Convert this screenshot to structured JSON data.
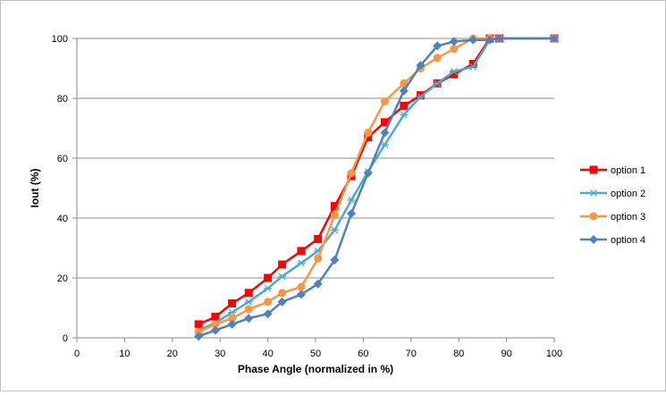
{
  "chart_data": {
    "type": "line",
    "title": "",
    "xlabel": "Phase Angle (normalized in %)",
    "ylabel": "Iout (%)",
    "xlim": [
      0,
      100
    ],
    "ylim": [
      0,
      100
    ],
    "xticks": [
      "0",
      "10",
      "20",
      "30",
      "40",
      "50",
      "60",
      "70",
      "80",
      "90",
      "100"
    ],
    "yticks": [
      "0",
      "20",
      "40",
      "60",
      "80",
      "100"
    ],
    "grid": "horizontal",
    "legend": "right",
    "series": [
      {
        "name": "option 1",
        "color": "#ff0000",
        "marker": "square",
        "x": [
          25.5,
          29,
          32.5,
          36,
          40,
          43,
          47,
          50.5,
          54,
          57.5,
          61,
          64.5,
          68.5,
          72,
          75.5,
          79,
          83,
          86.5,
          88.5,
          100
        ],
        "y": [
          4.5,
          7,
          11.5,
          15,
          20,
          24.5,
          29,
          33,
          44,
          54,
          67,
          72,
          77.5,
          81,
          85,
          88,
          91.5,
          100,
          100,
          100
        ]
      },
      {
        "name": "option 2",
        "color": "#4bacc6",
        "marker": "star",
        "x": [
          25.5,
          29,
          32.5,
          36,
          40,
          43,
          47,
          50.5,
          54,
          57.5,
          61,
          64.5,
          68.5,
          72,
          75.5,
          79,
          83,
          86.5,
          88.5,
          100
        ],
        "y": [
          2.5,
          5,
          8.5,
          12,
          16.5,
          20.5,
          25,
          29,
          36,
          46,
          55.5,
          64.5,
          74.5,
          80.5,
          85,
          89,
          90.5,
          99.5,
          100,
          100
        ]
      },
      {
        "name": "option 3",
        "color": "#f79646",
        "marker": "circle",
        "x": [
          25.5,
          29,
          32.5,
          36,
          40,
          43,
          47,
          50.5,
          54,
          57.5,
          61,
          64.5,
          68.5,
          72,
          75.5,
          79,
          83,
          86.5,
          88.5,
          100
        ],
        "y": [
          2,
          4.5,
          6.5,
          9.5,
          12,
          15,
          17,
          26.5,
          41,
          55,
          68.5,
          79,
          85,
          90,
          93.5,
          96.5,
          100,
          100,
          100,
          100
        ]
      },
      {
        "name": "option 4",
        "color": "#4f81bd",
        "marker": "diamond",
        "x": [
          25.5,
          29,
          32.5,
          36,
          40,
          43,
          47,
          50.5,
          54,
          57.5,
          61,
          64.5,
          68.5,
          72,
          75.5,
          79,
          83,
          86.5,
          88.5,
          100
        ],
        "y": [
          0.5,
          2.5,
          4.5,
          6.5,
          8,
          12,
          14.5,
          18,
          26,
          41.5,
          55,
          68.5,
          82.5,
          91,
          97.5,
          99,
          99.5,
          99.5,
          100,
          100
        ]
      }
    ]
  }
}
